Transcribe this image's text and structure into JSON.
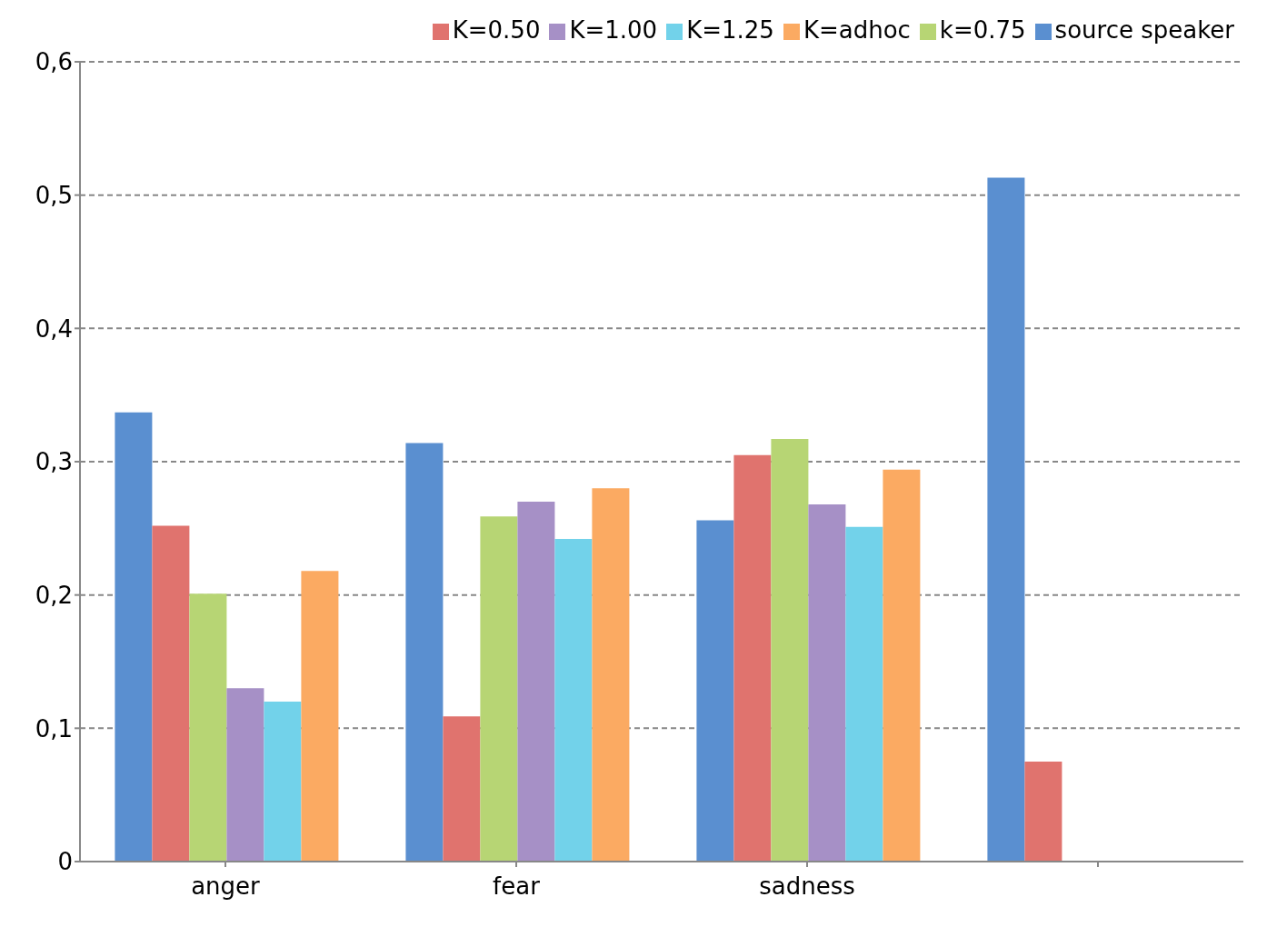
{
  "chart_data": {
    "type": "bar",
    "categories": [
      "anger",
      "fear",
      "sadness",
      null
    ],
    "series": [
      {
        "name": "source speaker",
        "color": "#5a8fd0",
        "values": [
          0.337,
          0.314,
          0.256,
          0.513
        ]
      },
      {
        "name": "K=0.50",
        "color": "#e0736e",
        "values": [
          0.252,
          0.109,
          0.305,
          0.075
        ]
      },
      {
        "name": "k=0.75",
        "color": "#b7d574",
        "values": [
          0.201,
          0.259,
          0.317,
          null
        ]
      },
      {
        "name": "K=1.00",
        "color": "#a690c6",
        "values": [
          0.13,
          0.27,
          0.268,
          null
        ]
      },
      {
        "name": "K=1.25",
        "color": "#72d2ea",
        "values": [
          0.12,
          0.242,
          0.251,
          null
        ]
      },
      {
        "name": "K=adhoc",
        "color": "#fbaa62",
        "values": [
          0.218,
          0.28,
          0.294,
          null
        ]
      }
    ],
    "ylim": [
      0,
      0.6
    ],
    "yticks": [
      0,
      {
        "value": 0.1,
        "label": "0,1"
      },
      {
        "value": 0.2,
        "label": "0,2"
      },
      {
        "value": 0.3,
        "label": "0,3"
      },
      {
        "value": 0.4,
        "label": "0,4"
      },
      {
        "value": 0.5,
        "label": "0,5"
      },
      {
        "value": 0.6,
        "label": "0,6"
      }
    ],
    "grid": "y",
    "legend": "top right"
  }
}
